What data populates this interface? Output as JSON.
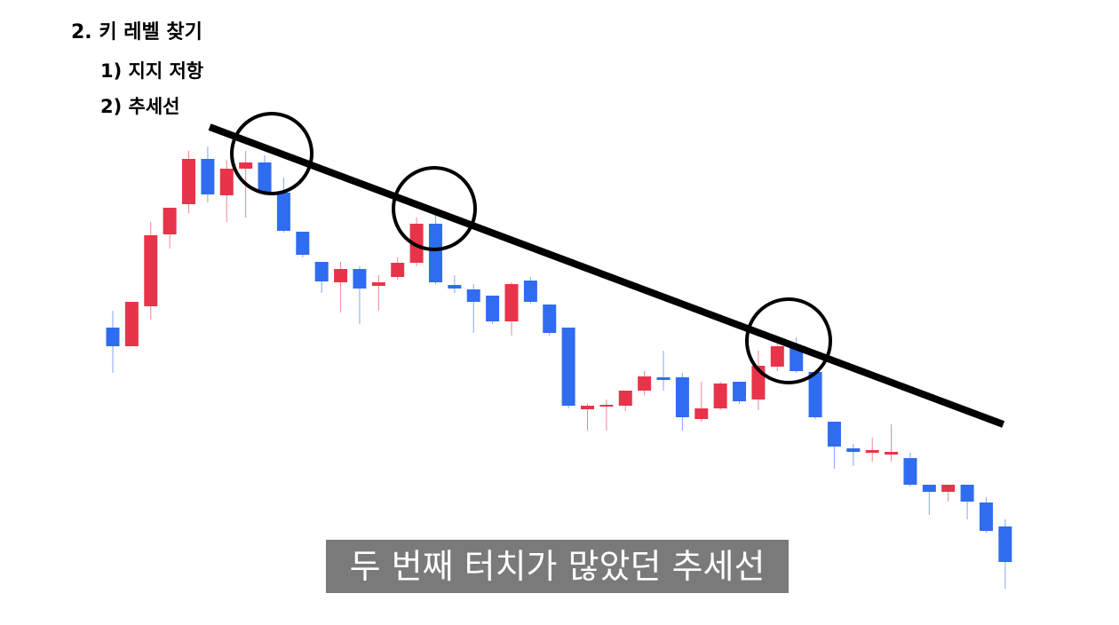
{
  "chart_data": {
    "type": "candlestick",
    "title": "2. 키 레벨 찾기",
    "items": [
      "1) 지지 저항",
      "2) 추세선"
    ],
    "caption": "두 번째 터치가 많았던 추세선",
    "up_color": "#e8344a",
    "down_color": "#2f6cf0",
    "ylim": [
      0,
      704
    ],
    "open": [
      335,
      314,
      359,
      440,
      474,
      525,
      484,
      514,
      521,
      487,
      443,
      409,
      386,
      401,
      382,
      392,
      408,
      452,
      383,
      378,
      371,
      342,
      388,
      361,
      335,
      243,
      246,
      247,
      264,
      279,
      279,
      232,
      244,
      274,
      254,
      291,
      314,
      285,
      229,
      199,
      194,
      192,
      188,
      158,
      150,
      158,
      138,
      111
    ],
    "high": [
      354,
      364,
      454,
      470,
      534,
      539,
      524,
      534,
      529,
      504,
      443,
      409,
      409,
      404,
      394,
      414,
      459,
      469,
      394,
      384,
      371,
      386,
      392,
      361,
      335,
      249,
      254,
      264,
      286,
      309,
      284,
      274,
      274,
      274,
      309,
      324,
      324,
      285,
      229,
      204,
      211,
      226,
      194,
      158,
      158,
      158,
      144,
      119
    ],
    "low": [
      284,
      314,
      344,
      424,
      464,
      476,
      454,
      459,
      484,
      442,
      414,
      374,
      352,
      339,
      354,
      389,
      404,
      384,
      374,
      329,
      339,
      326,
      362,
      326,
      244,
      219,
      219,
      241,
      259,
      264,
      219,
      229,
      242,
      249,
      242,
      286,
      284,
      232,
      176,
      179,
      184,
      184,
      156,
      124,
      139,
      119,
      104,
      41
    ],
    "close": [
      314,
      364,
      439,
      470,
      525,
      485,
      514,
      521,
      487,
      444,
      417,
      387,
      401,
      379,
      386,
      408,
      452,
      386,
      379,
      364,
      342,
      384,
      364,
      329,
      247,
      247,
      248,
      264,
      280,
      276,
      234,
      244,
      272,
      252,
      292,
      314,
      286,
      234,
      201,
      195,
      197,
      195,
      158,
      150,
      158,
      139,
      106,
      71
    ],
    "trendline": {
      "x": [
        5.1,
        46.9
      ],
      "y": [
        561,
        226
      ]
    }
  }
}
